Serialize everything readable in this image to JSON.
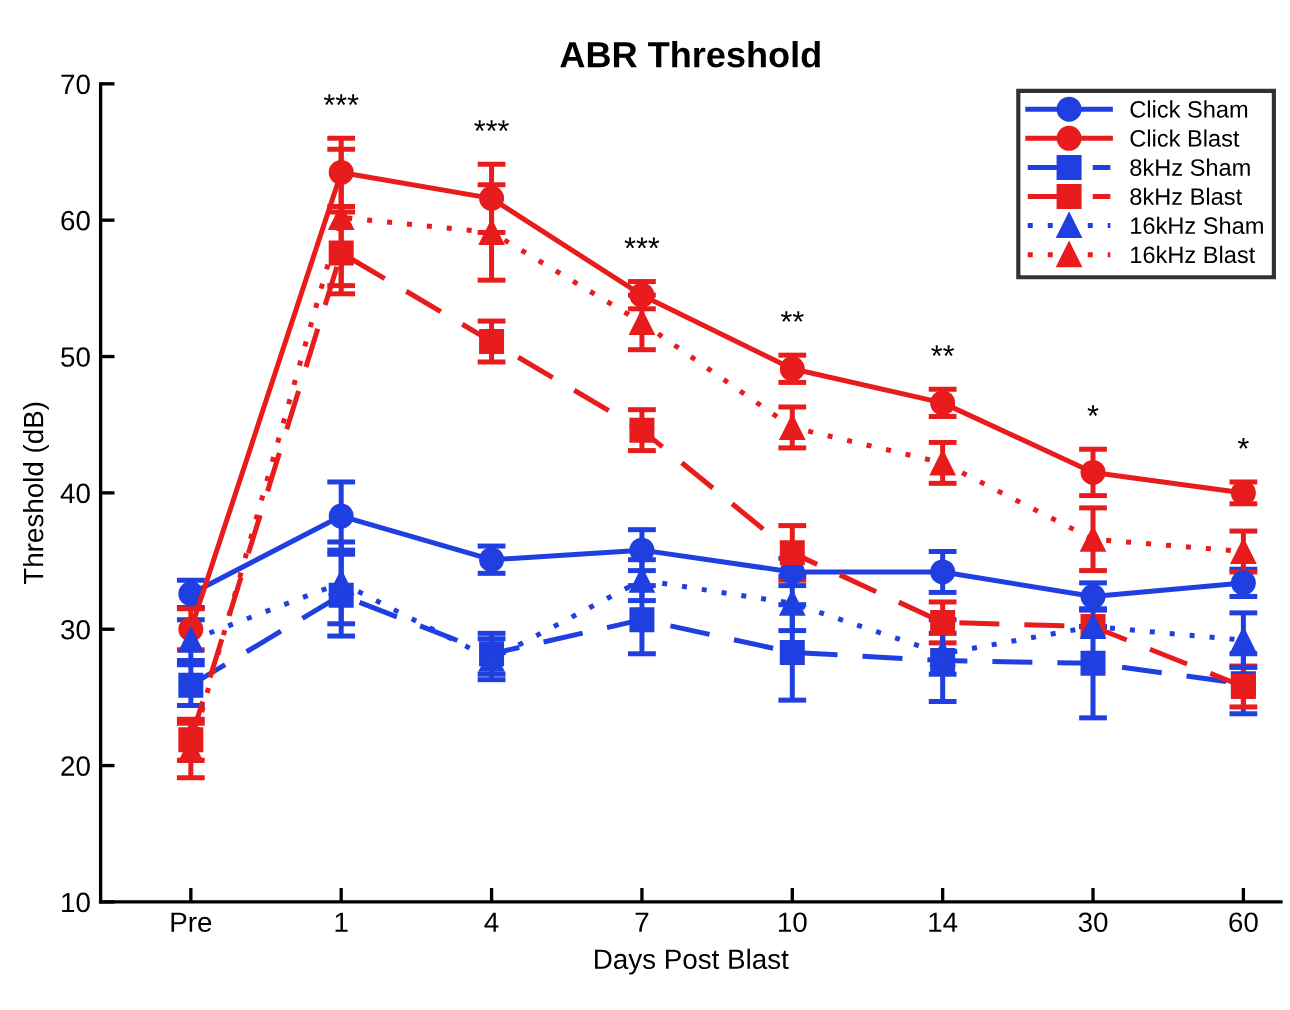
{
  "chart_data": {
    "type": "line",
    "title": "ABR Threshold",
    "xlabel": "Days Post Blast",
    "ylabel": "Threshold (dB)",
    "categories": [
      "Pre",
      "1",
      "4",
      "7",
      "10",
      "14",
      "30",
      "60"
    ],
    "ylim": [
      10,
      70
    ],
    "yticks": [
      10,
      20,
      30,
      40,
      50,
      60,
      70
    ],
    "grid": false,
    "legend": "top right",
    "series": [
      {
        "name": "Click Sham",
        "color": "#1f3fe0",
        "marker": "circle",
        "line_style": "solid",
        "values": [
          32.6,
          38.3,
          35.1,
          35.8,
          34.2,
          34.2,
          32.4,
          33.4
        ],
        "errors": [
          1,
          2.5,
          1,
          1.5,
          1,
          1.5,
          1,
          1
        ]
      },
      {
        "name": "Click Blast",
        "color": "#e81c1c",
        "marker": "circle",
        "line_style": "solid",
        "values": [
          30,
          63.5,
          61.6,
          54.5,
          49.1,
          46.6,
          41.5,
          40.0
        ],
        "errors": [
          1.5,
          2.5,
          2.5,
          1,
          1,
          1,
          1.7,
          0.8
        ]
      },
      {
        "name": "8kHz Sham",
        "color": "#1f3fe0",
        "marker": "square",
        "line_style": "dashed",
        "values": [
          25.9,
          32.5,
          28.2,
          30.7,
          28.3,
          27.7,
          27.5,
          26.0
        ],
        "errors": [
          1.5,
          3,
          1.5,
          2.5,
          3.5,
          3,
          4,
          2.2
        ]
      },
      {
        "name": "8kHz Blast",
        "color": "#e81c1c",
        "marker": "square",
        "line_style": "dashed",
        "values": [
          21.9,
          57.6,
          51.1,
          44.6,
          35.6,
          30.5,
          30.2,
          25.8
        ],
        "errors": [
          1.5,
          3,
          1.5,
          1.5,
          2,
          1.5,
          null,
          1.5
        ]
      },
      {
        "name": "16kHz Sham",
        "color": "#1f3fe0",
        "marker": "triangle",
        "line_style": "dotted",
        "values": [
          29.2,
          33.4,
          27.8,
          33.6,
          31.9,
          28.2,
          30.2,
          29.2
        ],
        "errors": [
          1.5,
          3,
          1.5,
          1.5,
          2,
          1.5,
          null,
          2
        ]
      },
      {
        "name": "16kHz Blast",
        "color": "#e81c1c",
        "marker": "triangle",
        "line_style": "dotted",
        "values": [
          21.1,
          60.2,
          59.1,
          52.5,
          44.8,
          42.2,
          36.6,
          35.7
        ],
        "errors": [
          2,
          5,
          3.5,
          2,
          1.5,
          1.5,
          2.3,
          1.5
        ]
      }
    ],
    "annotations": [
      "***",
      "***",
      "***",
      "**",
      "**",
      "*",
      "*"
    ]
  }
}
